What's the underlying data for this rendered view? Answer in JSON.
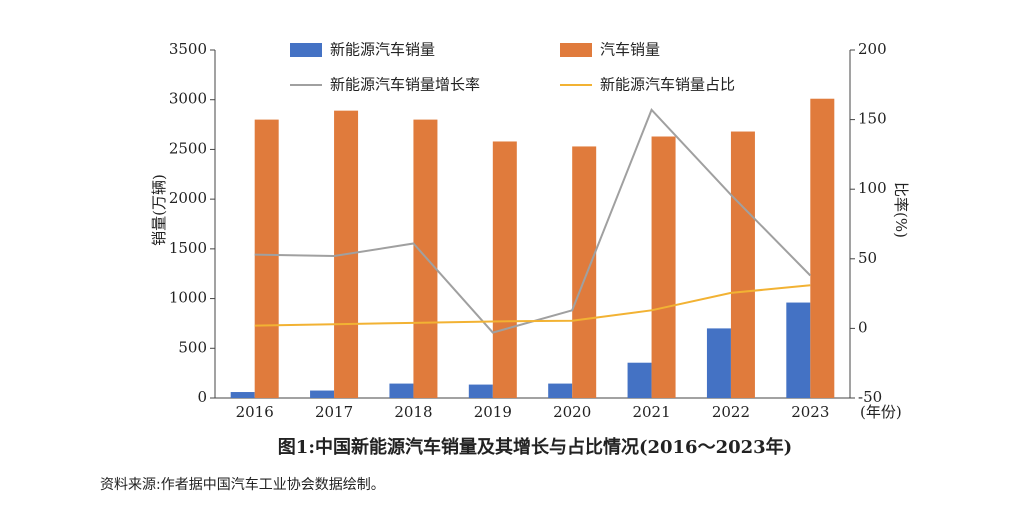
{
  "chart_data": {
    "type": "combo",
    "title": "图1:中国新能源汽车销量及其增长与占比情况(2016～2023年)",
    "source": "资料来源:作者据中国汽车工业协会数据绘制。",
    "y_label": "销量(万辆)",
    "y2_label": "比率(%)",
    "x_label": "(年份)",
    "categories": [
      "2016",
      "2017",
      "2018",
      "2019",
      "2020",
      "2021",
      "2022",
      "2023"
    ],
    "series": [
      {
        "name": "新能源汽车销量",
        "type": "bar",
        "color": "#4472c4",
        "values": [
          60,
          75,
          145,
          135,
          145,
          355,
          700,
          960
        ]
      },
      {
        "name": "汽车销量",
        "type": "bar",
        "color": "#e07b3c",
        "values": [
          2800,
          2890,
          2800,
          2580,
          2530,
          2630,
          2680,
          3010
        ]
      },
      {
        "name": "新能源汽车销量增长率",
        "type": "line",
        "axis": "y2",
        "color": "#a0a0a0",
        "values": [
          53,
          52,
          61,
          -3,
          13,
          157,
          96,
          38
        ]
      },
      {
        "name": "新能源汽车销量占比",
        "type": "line",
        "axis": "y2",
        "color": "#f2b233",
        "values": [
          2,
          3,
          4,
          5,
          5.5,
          13,
          25.5,
          31
        ]
      }
    ],
    "ylim": [
      0,
      3500
    ],
    "yticks": [
      0,
      500,
      1000,
      1500,
      2000,
      2500,
      3000,
      3500
    ],
    "y2lim": [
      -50,
      200
    ],
    "y2ticks": [
      -50,
      0,
      50,
      100,
      150,
      200
    ]
  }
}
